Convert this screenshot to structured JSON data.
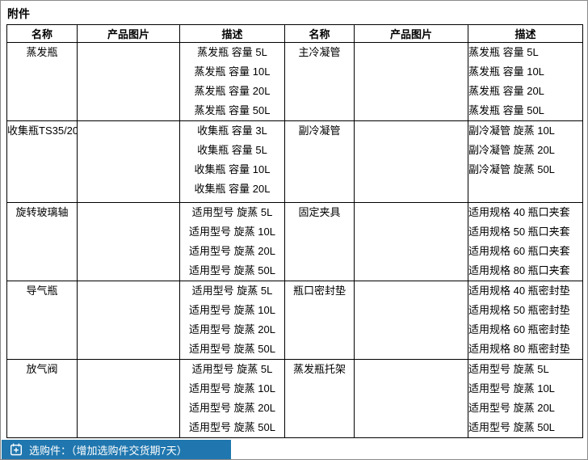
{
  "page": {
    "title": "附件"
  },
  "table": {
    "headers": [
      "名称",
      "产品图片",
      "描述",
      "名称",
      "产品图片",
      "描述"
    ],
    "rows": [
      {
        "left": {
          "name": "蒸发瓶",
          "desc": [
            "蒸发瓶 容量 5L",
            "蒸发瓶 容量 10L",
            "蒸发瓶 容量 20L",
            "蒸发瓶 容量 50L"
          ]
        },
        "right": {
          "name": "主冷凝管",
          "desc": [
            "蒸发瓶 容量 5L",
            "蒸发瓶 容量 10L",
            "蒸发瓶 容量 20L",
            "蒸发瓶 容量 50L"
          ]
        }
      },
      {
        "left": {
          "name": "收集瓶TS35/20",
          "desc": [
            "收集瓶 容量 3L",
            "收集瓶 容量 5L",
            "收集瓶 容量 10L",
            "收集瓶 容量 20L"
          ]
        },
        "right": {
          "name": "副冷凝管",
          "desc": [
            "副冷凝管 旋蒸 10L",
            "副冷凝管 旋蒸 20L",
            "副冷凝管 旋蒸 50L"
          ]
        }
      },
      {
        "left": {
          "name": "旋转玻璃轴",
          "desc": [
            "适用型号 旋蒸 5L",
            "适用型号 旋蒸 10L",
            "适用型号 旋蒸 20L",
            "适用型号 旋蒸 50L"
          ]
        },
        "right": {
          "name": "固定夹具",
          "desc": [
            "适用规格 40 瓶口夹套",
            "适用规格 50 瓶口夹套",
            "适用规格 60 瓶口夹套",
            "适用规格 80 瓶口夹套"
          ]
        }
      },
      {
        "left": {
          "name": "导气瓶",
          "desc": [
            "适用型号 旋蒸 5L",
            "适用型号 旋蒸 10L",
            "适用型号 旋蒸 20L",
            "适用型号 旋蒸 50L"
          ]
        },
        "right": {
          "name": "瓶口密封垫",
          "desc": [
            "适用规格 40 瓶密封垫",
            "适用规格 50 瓶密封垫",
            "适用规格 60 瓶密封垫",
            "适用规格 80 瓶密封垫"
          ]
        }
      },
      {
        "left": {
          "name": "放气阀",
          "desc": [
            "适用型号 旋蒸 5L",
            "适用型号 旋蒸 10L",
            "适用型号 旋蒸 20L",
            "适用型号 旋蒸 50L"
          ]
        },
        "right": {
          "name": "蒸发瓶托架",
          "desc": [
            "适用型号 旋蒸 5L",
            "适用型号 旋蒸 10L",
            "适用型号 旋蒸 20L",
            "适用型号 旋蒸 50L"
          ]
        }
      }
    ]
  },
  "footer": {
    "label": "选购件：（增加选购件交货期7天）",
    "icon": "calendar-plus-icon",
    "bar_color": "#2077af"
  }
}
